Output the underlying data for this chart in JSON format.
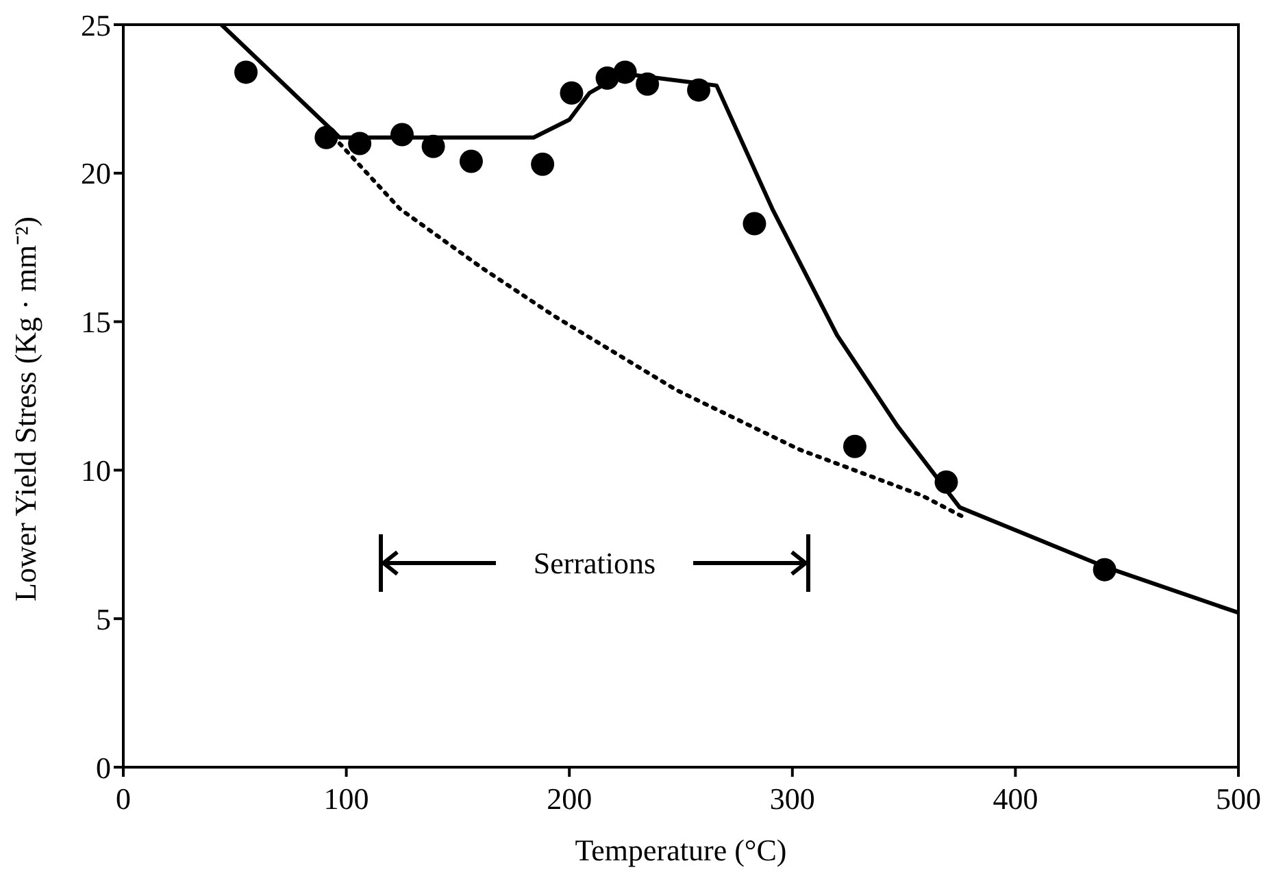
{
  "chart_data": {
    "type": "scatter",
    "xlabel": "Temperature (°C)",
    "ylabel": "Lower Yield Stress (Kg · mm⁻²)",
    "xlim": [
      0,
      500
    ],
    "xticks": [
      0,
      100,
      200,
      300,
      400,
      500
    ],
    "ylim": [
      0,
      25
    ],
    "yticks": [
      0,
      5,
      10,
      15,
      20,
      25
    ],
    "grid": false,
    "legend": false,
    "annotations": [
      "Serrations"
    ],
    "series": [
      {
        "color": "#000000",
        "marker": "circle",
        "x": [
          55,
          91,
          106,
          125,
          139,
          156,
          188,
          201,
          217,
          225,
          235,
          258,
          283,
          328,
          369,
          440
        ],
        "values": [
          23.4,
          21.2,
          21.0,
          21.3,
          20.9,
          20.4,
          20.3,
          22.7,
          23.2,
          23.4,
          23.0,
          22.8,
          18.3,
          10.8,
          9.6,
          6.65
        ]
      },
      {
        "type": "line",
        "color": "#000000",
        "line_style": "solid",
        "x": [
          44,
          97,
          184,
          200,
          209,
          224,
          266,
          291,
          320,
          347,
          375,
          440,
          500
        ],
        "values": [
          25,
          21.2,
          21.2,
          21.8,
          22.7,
          23.35,
          22.95,
          18.8,
          14.55,
          11.5,
          8.75,
          6.75,
          5.2
        ]
      },
      {
        "type": "line",
        "color": "#000000",
        "line_style": "dotted",
        "x": [
          97,
          124,
          161,
          193,
          248,
          303,
          358,
          376
        ],
        "values": [
          21,
          18.8,
          16.8,
          15.2,
          12.7,
          10.7,
          9.15,
          8.45
        ]
      }
    ]
  }
}
